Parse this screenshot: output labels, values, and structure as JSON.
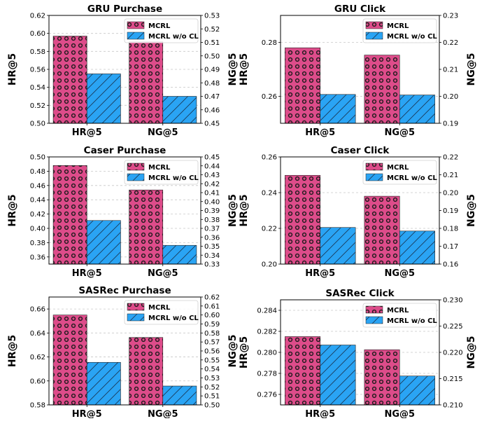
{
  "chart_data": [
    {
      "type": "bar",
      "title": "GRU Purchase",
      "categories": [
        "HR@5",
        "NG@5"
      ],
      "ylabel_left": "HR@5",
      "ylabel_right": "NG@5",
      "ylim_left": [
        0.5,
        0.62
      ],
      "ylim_right": [
        0.45,
        0.53
      ],
      "yticks_left": [
        "0.50",
        "0.52",
        "0.54",
        "0.56",
        "0.58",
        "0.60",
        "0.62"
      ],
      "yticks_right": [
        "0.45",
        "0.46",
        "0.47",
        "0.48",
        "0.49",
        "0.50",
        "0.51",
        "0.52",
        "0.53"
      ],
      "series": [
        {
          "name": "MCRL",
          "values": [
            0.597,
            0.5105
          ]
        },
        {
          "name": "MCRL w/o CL",
          "values": [
            0.555,
            0.47
          ]
        }
      ],
      "legend": "top-right",
      "grid": true
    },
    {
      "type": "bar",
      "title": "GRU Click",
      "categories": [
        "HR@5",
        "NG@5"
      ],
      "ylabel_left": "HR@5",
      "ylabel_right": "NG@5",
      "ylim_left": [
        0.25,
        0.29
      ],
      "ylim_right": [
        0.19,
        0.23
      ],
      "yticks_left": [
        "0.26",
        "0.28"
      ],
      "yticks_right": [
        "0.19",
        "0.20",
        "0.21",
        "0.22",
        "0.23"
      ],
      "series": [
        {
          "name": "MCRL",
          "values": [
            0.278,
            0.2153
          ]
        },
        {
          "name": "MCRL w/o CL",
          "values": [
            0.2607,
            0.2005
          ]
        }
      ],
      "legend": "top-right",
      "grid": true
    },
    {
      "type": "bar",
      "title": "Caser Purchase",
      "categories": [
        "HR@5",
        "NG@5"
      ],
      "ylabel_left": "HR@5",
      "ylabel_right": "NG@5",
      "ylim_left": [
        0.35,
        0.5
      ],
      "ylim_right": [
        0.33,
        0.45
      ],
      "yticks_left": [
        "0.36",
        "0.38",
        "0.40",
        "0.42",
        "0.44",
        "0.46",
        "0.48",
        "0.50"
      ],
      "yticks_right": [
        "0.33",
        "0.34",
        "0.35",
        "0.36",
        "0.37",
        "0.38",
        "0.39",
        "0.40",
        "0.41",
        "0.42",
        "0.43",
        "0.44",
        "0.45"
      ],
      "series": [
        {
          "name": "MCRL",
          "values": [
            0.488,
            0.413
          ]
        },
        {
          "name": "MCRL w/o CL",
          "values": [
            0.411,
            0.351
          ]
        }
      ],
      "legend": "top-right",
      "grid": true
    },
    {
      "type": "bar",
      "title": "Caser Click",
      "categories": [
        "HR@5",
        "NG@5"
      ],
      "ylabel_left": "HR@5",
      "ylabel_right": "NG@5",
      "ylim_left": [
        0.2,
        0.26
      ],
      "ylim_right": [
        0.16,
        0.22
      ],
      "yticks_left": [
        "0.20",
        "0.22",
        "0.24",
        "0.26"
      ],
      "yticks_right": [
        "0.16",
        "0.17",
        "0.18",
        "0.19",
        "0.20",
        "0.21",
        "0.22"
      ],
      "series": [
        {
          "name": "MCRL",
          "values": [
            0.2497,
            0.198
          ]
        },
        {
          "name": "MCRL w/o CL",
          "values": [
            0.2205,
            0.1785
          ]
        }
      ],
      "legend": "top-right",
      "grid": true
    },
    {
      "type": "bar",
      "title": "SASRec Purchase",
      "categories": [
        "HR@5",
        "NG@5"
      ],
      "ylabel_left": "HR@5",
      "ylabel_right": "NG@5",
      "ylim_left": [
        0.58,
        0.67
      ],
      "ylim_right": [
        0.5,
        0.62
      ],
      "yticks_left": [
        "0.58",
        "0.60",
        "0.62",
        "0.64",
        "0.66"
      ],
      "yticks_right": [
        "0.50",
        "0.51",
        "0.52",
        "0.53",
        "0.54",
        "0.55",
        "0.56",
        "0.57",
        "0.58",
        "0.59",
        "0.60",
        "0.61",
        "0.62"
      ],
      "series": [
        {
          "name": "MCRL",
          "values": [
            0.655,
            0.575
          ]
        },
        {
          "name": "MCRL w/o CL",
          "values": [
            0.6155,
            0.521
          ]
        }
      ],
      "legend": "top-right",
      "grid": true
    },
    {
      "type": "bar",
      "title": "SASRec Click",
      "categories": [
        "HR@5",
        "NG@5"
      ],
      "ylabel_left": "HR@5",
      "ylabel_right": "NG@5",
      "ylim_left": [
        0.275,
        0.285
      ],
      "ylim_right": [
        0.21,
        0.23
      ],
      "yticks_left": [
        "0.276",
        "0.278",
        "0.280",
        "0.282",
        "0.284"
      ],
      "yticks_right": [
        "0.210",
        "0.215",
        "0.220",
        "0.225",
        "0.230"
      ],
      "series": [
        {
          "name": "MCRL",
          "values": [
            0.2815,
            0.2205
          ]
        },
        {
          "name": "MCRL w/o CL",
          "values": [
            0.2807,
            0.2155
          ]
        }
      ],
      "legend": "top-right",
      "grid": true
    }
  ],
  "colors": {
    "mcrl_fill": "#dd4c8a",
    "mcrl_dot": "#1a1a1a",
    "wocl_fill": "#2aa4f4",
    "wocl_hatch": "#1a3a5a",
    "grid": "#c8c8c8",
    "frame": "#000000",
    "text": "#000000"
  }
}
